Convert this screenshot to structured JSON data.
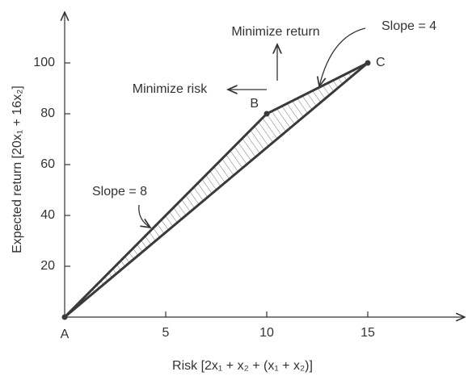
{
  "chart_data": {
    "type": "line",
    "x_label": "Risk [2x₁ + x₂ + (x₁ + x₂)]",
    "y_label": "Expected return [20x₁ + 16x₂]",
    "series": [
      {
        "color": "#3a3a3a",
        "x": [
          0,
          10,
          15
        ],
        "values": [
          0,
          80,
          100
        ]
      },
      {
        "color": "#3a3a3a",
        "x": [
          0,
          15
        ],
        "values": [
          0,
          100
        ]
      }
    ],
    "point_labels": [
      "A",
      "B",
      "C"
    ],
    "annotations": [
      "Minimize return",
      "Minimize risk",
      "Slope = 4",
      "Slope = 8"
    ],
    "xlim": [
      0,
      19.8
    ],
    "ylim": [
      0,
      120
    ],
    "xticks": [
      5,
      10,
      15
    ],
    "yticks": [
      20,
      40,
      60,
      80,
      100
    ],
    "hatch": true
  }
}
